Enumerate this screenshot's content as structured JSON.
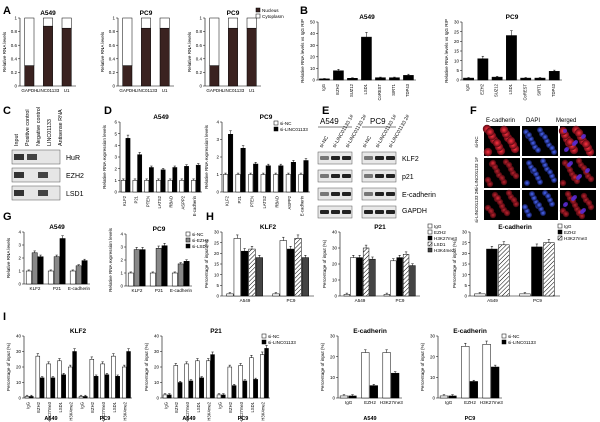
{
  "panel_labels": [
    "A",
    "B",
    "C",
    "D",
    "E",
    "F",
    "G",
    "H",
    "I"
  ],
  "chart_data": [
    {
      "id": "A1",
      "type": "bar",
      "title": "A549",
      "ylabel": "Relative RNA levels",
      "ylim": [
        0,
        1.0
      ],
      "yticks": [
        0,
        0.2,
        0.4,
        0.6,
        0.8,
        1.0
      ],
      "categories": [
        "GAPDH",
        "LINC01133",
        "U1"
      ],
      "series": [
        {
          "name": "Nucleus",
          "values": [
            0.3,
            0.88,
            0.85
          ],
          "color": "#3a2220"
        },
        {
          "name": "Cytoplasm",
          "values": [
            0.7,
            0.12,
            0.15
          ],
          "color": "#ffffff"
        }
      ],
      "stacked": true
    },
    {
      "id": "A2",
      "type": "bar",
      "title": "PC9",
      "ylabel": "Relative RNA levels",
      "ylim": [
        0,
        1.0
      ],
      "yticks": [
        0,
        0.2,
        0.4,
        0.6,
        0.8,
        1.0
      ],
      "categories": [
        "GAPDH",
        "LINC01133",
        "U1"
      ],
      "series": [
        {
          "name": "Nucleus",
          "values": [
            0.3,
            0.85,
            0.85
          ],
          "color": "#3a2220"
        },
        {
          "name": "Cytoplasm",
          "values": [
            0.7,
            0.15,
            0.15
          ],
          "color": "#ffffff"
        }
      ],
      "stacked": true
    },
    {
      "id": "A3",
      "type": "bar",
      "title": "PC9",
      "ylabel": "Relative RNA levels",
      "ylim": [
        0,
        1.0
      ],
      "yticks": [
        0,
        0.2,
        0.4,
        0.6,
        0.8,
        1.0
      ],
      "categories": [
        "GAPDH",
        "LINC01133",
        "U1"
      ],
      "series": [
        {
          "name": "Nucleus",
          "values": [
            0.3,
            0.85,
            0.85
          ],
          "color": "#3a2220"
        },
        {
          "name": "Cytoplasm",
          "values": [
            0.7,
            0.15,
            0.15
          ],
          "color": "#ffffff"
        }
      ],
      "stacked": true,
      "legend": [
        "Nucleus",
        "Cytoplasm"
      ]
    },
    {
      "id": "B1",
      "type": "bar",
      "title": "A549",
      "ylabel": "Relative RNA levels vs IgG RIP",
      "ylim": [
        0,
        50
      ],
      "yticks": [
        0,
        10,
        20,
        30,
        40,
        50
      ],
      "categories": [
        "IgG",
        "EZH2",
        "SUZ12",
        "LSD1",
        "CoREST",
        "SIRT1",
        "TDP43"
      ],
      "series": [
        {
          "name": "",
          "values": [
            1,
            8,
            1.5,
            37,
            2,
            2,
            4
          ],
          "errors": [
            0.3,
            1.2,
            0.4,
            4,
            0.5,
            0.5,
            1
          ]
        }
      ]
    },
    {
      "id": "B2",
      "type": "bar",
      "title": "PC9",
      "ylabel": "Relative RNA levels vs IgG RIP",
      "ylim": [
        0,
        30
      ],
      "yticks": [
        0,
        5,
        10,
        15,
        20,
        25,
        30
      ],
      "categories": [
        "IgG",
        "EZH2",
        "SUZ12",
        "LSD1",
        "CoREST",
        "SIRT1",
        "TDP43"
      ],
      "series": [
        {
          "name": "",
          "values": [
            1,
            11,
            1.5,
            23,
            1,
            1,
            4.5
          ],
          "errors": [
            0.3,
            1.3,
            0.4,
            2.5,
            0.3,
            0.3,
            0.6
          ]
        }
      ]
    },
    {
      "id": "D1",
      "type": "bar",
      "title": "A549",
      "ylabel": "Relative RNA expression levels",
      "ylim": [
        0,
        6
      ],
      "yticks": [
        0,
        1,
        2,
        3,
        4,
        5,
        6
      ],
      "categories": [
        "KLF2",
        "P21",
        "PTEN",
        "LATS2",
        "RBAD",
        "ASPP2",
        "E-cadherin"
      ],
      "series": [
        {
          "name": "si-NC",
          "values": [
            1,
            1,
            1,
            1,
            1,
            1,
            1
          ],
          "color": "#ffffff"
        },
        {
          "name": "si-LINC01133",
          "values": [
            4.6,
            3.2,
            2.1,
            1.9,
            2.1,
            2.2,
            2.3
          ],
          "color": "#000000"
        }
      ]
    },
    {
      "id": "D2",
      "type": "bar",
      "title": "PC9",
      "ylabel": "Relative RNA expression levels",
      "ylim": [
        0,
        4
      ],
      "yticks": [
        0,
        1,
        2,
        3,
        4
      ],
      "categories": [
        "KLF2",
        "P21",
        "PTEN",
        "LATS2",
        "RBAD",
        "ASPP2",
        "E-cadherin"
      ],
      "series": [
        {
          "name": "si-NC",
          "values": [
            1,
            1,
            1,
            1,
            1,
            1,
            1
          ],
          "color": "#ffffff"
        },
        {
          "name": "si-LINC01133",
          "values": [
            3.3,
            2.5,
            1.6,
            1.5,
            1.5,
            1.7,
            1.8
          ],
          "color": "#000000"
        }
      ],
      "legend": [
        "si-NC",
        "si-LINC01133"
      ]
    },
    {
      "id": "G1",
      "type": "bar",
      "title": "A549",
      "ylabel": "Relative RNA levels",
      "ylim": [
        0,
        4
      ],
      "yticks": [
        0,
        1,
        2,
        3,
        4
      ],
      "categories": [
        "KLF2",
        "P21",
        "E-cadherin"
      ],
      "series": [
        {
          "name": "si-NC",
          "values": [
            1,
            1,
            1
          ],
          "color": "#ffffff"
        },
        {
          "name": "si-EZH2",
          "values": [
            2.4,
            2.1,
            1.4
          ],
          "color": "#888888"
        },
        {
          "name": "si-LSD1",
          "values": [
            2.1,
            3.5,
            1.8
          ],
          "color": "#000000"
        }
      ]
    },
    {
      "id": "G2",
      "type": "bar",
      "title": "PC9",
      "ylabel": "Relative RNA expression levels",
      "ylim": [
        0,
        4
      ],
      "yticks": [
        0,
        1,
        2,
        3,
        4
      ],
      "categories": [
        "KLF2",
        "P21",
        "E-cadherin"
      ],
      "series": [
        {
          "name": "si-NC",
          "values": [
            1,
            1,
            1
          ],
          "color": "#ffffff"
        },
        {
          "name": "si-EZH2",
          "values": [
            2.8,
            2.9,
            1.7
          ],
          "color": "#888888"
        },
        {
          "name": "si-LSD1",
          "values": [
            2.8,
            3.1,
            1.9
          ],
          "color": "#000000"
        }
      ],
      "legend": [
        "si-NC",
        "si-EZH2",
        "si-LSD1"
      ]
    },
    {
      "id": "H1",
      "type": "bar",
      "title": "KLF2",
      "ylabel": "Percentage of input (%)",
      "ylim": [
        0,
        30
      ],
      "yticks": [
        0,
        5,
        10,
        15,
        20,
        25,
        30
      ],
      "categories": [
        "A549",
        "PC9"
      ],
      "series": [
        {
          "name": "IgG",
          "values": [
            1,
            1
          ],
          "color": "#ffffff"
        },
        {
          "name": "EZH2",
          "values": [
            27,
            26
          ],
          "color": "#ffffff"
        },
        {
          "name": "H3K27me3",
          "values": [
            21,
            22
          ],
          "color": "#000000"
        },
        {
          "name": "LSD1",
          "values": [
            22,
            27
          ],
          "color": "#aaaaaa"
        },
        {
          "name": "H3K4me2",
          "values": [
            18,
            18
          ],
          "color": "#444444"
        }
      ]
    },
    {
      "id": "H2",
      "type": "bar",
      "title": "P21",
      "ylabel": "Percentage of input (%)",
      "ylim": [
        0,
        40
      ],
      "yticks": [
        0,
        10,
        20,
        30,
        40
      ],
      "categories": [
        "A549",
        "PC9"
      ],
      "series": [
        {
          "name": "IgG",
          "values": [
            1,
            1
          ],
          "color": "#ffffff"
        },
        {
          "name": "EZH2",
          "values": [
            24,
            22
          ],
          "color": "#ffffff"
        },
        {
          "name": "H3K27me3",
          "values": [
            24,
            24
          ],
          "color": "#000000"
        },
        {
          "name": "LSD1",
          "values": [
            30,
            26
          ],
          "color": "#aaaaaa"
        },
        {
          "name": "H3K4me2",
          "values": [
            23,
            19
          ],
          "color": "#444444"
        }
      ],
      "legend": [
        "IgG",
        "EZH2",
        "H3K27me3",
        "LSD1",
        "H3K4me2"
      ]
    },
    {
      "id": "H3",
      "type": "bar",
      "title": "E-cadherin",
      "ylabel": "Percentage of input (%)",
      "ylim": [
        0,
        30
      ],
      "yticks": [
        0,
        5,
        10,
        15,
        20,
        25,
        30
      ],
      "categories": [
        "A549",
        "PC9"
      ],
      "series": [
        {
          "name": "IgG",
          "values": [
            1,
            1
          ],
          "color": "#ffffff"
        },
        {
          "name": "EZH2",
          "values": [
            22,
            23
          ],
          "color": "#000000"
        },
        {
          "name": "H3K27me3",
          "values": [
            24,
            25
          ],
          "color": "#aaaaaa"
        }
      ],
      "legend": [
        "IgG",
        "EZH2",
        "H3K27me3"
      ]
    },
    {
      "id": "I1",
      "type": "bar",
      "title": "KLF2",
      "ylabel": "Percentage of input (%)",
      "ylim": [
        0,
        40
      ],
      "yticks": [
        0,
        10,
        20,
        30,
        40
      ],
      "categories": [
        "IgG",
        "EZH2",
        "H3K27me3",
        "LSD1",
        "H3K4me2",
        "IgG",
        "EZH2",
        "H3K27me3",
        "LSD1",
        "H3K4me2"
      ],
      "groups": [
        "A549",
        "PC9"
      ],
      "series": [
        {
          "name": "si-NC",
          "values": [
            1,
            27,
            22,
            24,
            20,
            1,
            25,
            22,
            27,
            20
          ],
          "color": "#ffffff"
        },
        {
          "name": "si-LINC01133",
          "values": [
            1,
            13,
            13,
            15,
            30,
            1,
            14,
            15,
            14,
            30
          ],
          "color": "#000000"
        }
      ]
    },
    {
      "id": "I2",
      "type": "bar",
      "title": "P21",
      "ylabel": "Percentage of input (%)",
      "ylim": [
        0,
        40
      ],
      "yticks": [
        0,
        10,
        20,
        30,
        40
      ],
      "categories": [
        "IgG",
        "EZH2",
        "H3K27me3",
        "LSD1",
        "H3K4me2",
        "IgG",
        "EZH2",
        "H3K27me3",
        "LSD1",
        "H3K4me2"
      ],
      "groups": [
        "A549",
        "PC9"
      ],
      "series": [
        {
          "name": "si-NC",
          "values": [
            2,
            21,
            22,
            24,
            24,
            2,
            20,
            21,
            26,
            28
          ],
          "color": "#ffffff"
        },
        {
          "name": "si-LINC01133",
          "values": [
            2,
            10,
            11,
            13,
            28,
            2,
            8,
            11,
            12,
            32
          ],
          "color": "#000000"
        }
      ],
      "legend": [
        "si-NC",
        "si-LINC01133"
      ]
    },
    {
      "id": "I3",
      "type": "bar",
      "title": "E-cadherin",
      "ylabel": "Percentage of input (%)",
      "ylim": [
        0,
        30
      ],
      "yticks": [
        0,
        10,
        20,
        30
      ],
      "categories": [
        "IgG",
        "EZH2",
        "H3K27me3"
      ],
      "groups": [
        "A549"
      ],
      "series": [
        {
          "name": "si-NC",
          "values": [
            1,
            22,
            22
          ],
          "color": "#ffffff"
        },
        {
          "name": "si-LINC01133",
          "values": [
            1,
            6,
            12
          ],
          "color": "#000000"
        }
      ]
    },
    {
      "id": "I4",
      "type": "bar",
      "title": "E-cadherin",
      "ylabel": "Percentage of input (%)",
      "ylim": [
        0,
        30
      ],
      "yticks": [
        0,
        10,
        20,
        30
      ],
      "categories": [
        "IgG",
        "EZH2",
        "H3K27me3"
      ],
      "groups": [
        "PC9"
      ],
      "series": [
        {
          "name": "si-NC",
          "values": [
            1,
            25,
            26
          ],
          "color": "#ffffff"
        },
        {
          "name": "si-LINC01133",
          "values": [
            1,
            8,
            15
          ],
          "color": "#000000"
        }
      ],
      "legend": [
        "si-NC",
        "si-LINC01133"
      ]
    }
  ],
  "panelC": {
    "lanes": [
      "Input",
      "Positive control",
      "Negative control",
      "LINC01133",
      "Antisense RNA"
    ],
    "bands": [
      "HuR",
      "EZH2",
      "LSD1"
    ]
  },
  "panelE": {
    "groups": [
      "A549",
      "PC9"
    ],
    "lanes": [
      "si-NC",
      "si-LINC01133 1#",
      "si-LINC01133 2#",
      "si-NC",
      "si-LINC01133 1#",
      "si-LINC01133 2#"
    ],
    "bands": [
      "KLF2",
      "p21",
      "E-cadherin",
      "GAPDH"
    ]
  },
  "panelF": {
    "columns": [
      "E-cadherin",
      "DAPI",
      "Merged"
    ],
    "rows": [
      "si-NC",
      "si-LINC01133 1#",
      "si-LINC01133 2#"
    ]
  }
}
